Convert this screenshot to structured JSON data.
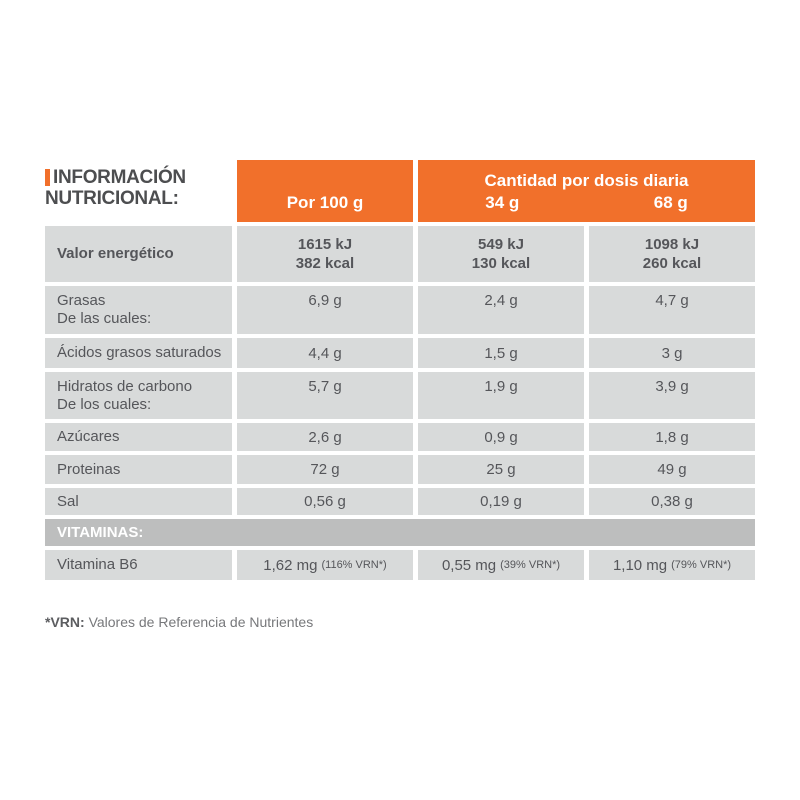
{
  "header": {
    "title_line1": "INFORMACIÓN",
    "title_line2": "NUTRICIONAL:",
    "col_per100": "Por 100 g",
    "daily_title": "Cantidad por dosis diaria",
    "col_dose1": "34 g",
    "col_dose2": "68 g"
  },
  "table": {
    "energy": {
      "label": "Valor energético",
      "values": [
        [
          "1615 kJ",
          "382 kcal"
        ],
        [
          "549 kJ",
          "130 kcal"
        ],
        [
          "1098 kJ",
          "260 kcal"
        ]
      ]
    },
    "fat": {
      "label": "Grasas",
      "sublabel": "De las cuales:",
      "values": [
        "6,9 g",
        "2,4 g",
        "4,7 g"
      ]
    },
    "saturated": {
      "label": "Ácidos grasos saturados",
      "values": [
        "4,4 g",
        "1,5 g",
        "3 g"
      ]
    },
    "carbs": {
      "label": "Hidratos de carbono",
      "sublabel": "De los cuales:",
      "values": [
        "5,7 g",
        "1,9 g",
        "3,9 g"
      ]
    },
    "sugars": {
      "label": "Azúcares",
      "values": [
        "2,6 g",
        "0,9 g",
        "1,8 g"
      ]
    },
    "protein": {
      "label": "Proteinas",
      "values": [
        "72 g",
        "25 g",
        "49 g"
      ]
    },
    "salt": {
      "label": "Sal",
      "values": [
        "0,56 g",
        "0,19 g",
        "0,38 g"
      ]
    },
    "vitamin_b6": {
      "label": "Vitamina B6",
      "values": [
        {
          "main": "1,62 mg",
          "note": "(116% VRN*)"
        },
        {
          "main": "0,55 mg",
          "note": "(39% VRN*)"
        },
        {
          "main": "1,10 mg",
          "note": "(79% VRN*)"
        }
      ]
    }
  },
  "vitamins_band": "VITAMINAS:",
  "footnote": {
    "bold": "*VRN:",
    "text": "Valores de Referencia de Nutrientes"
  },
  "colors": {
    "accent_orange": "#f1702b",
    "cell_gray": "#d8dada",
    "band_gray": "#bdbebe",
    "text_gray": "#55565a"
  }
}
